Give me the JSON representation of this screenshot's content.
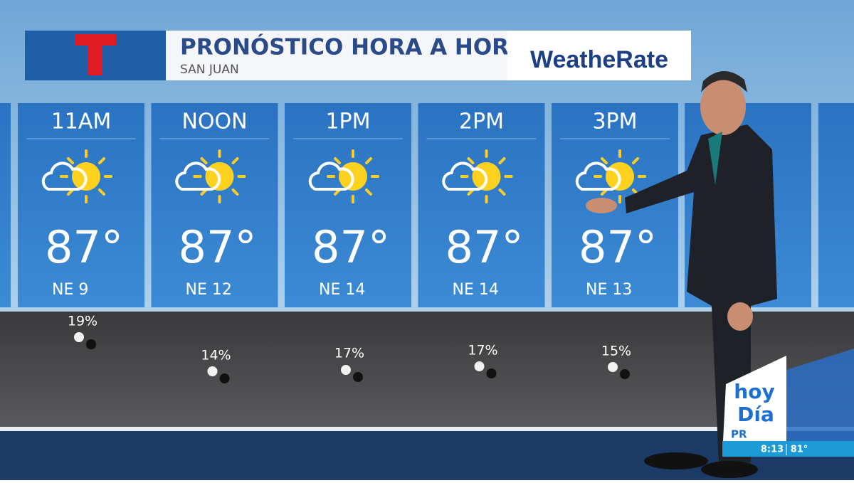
{
  "header": {
    "title": "PRONÓSTICO HORA A HORA",
    "subtitle": "SAN JUAN",
    "brand": "WeatheRate"
  },
  "hours": [
    {
      "time": "11AM",
      "temp": "87°",
      "wind": "NE 9",
      "precip": "19%"
    },
    {
      "time": "NOON",
      "temp": "87°",
      "wind": "NE 12",
      "precip": "14%"
    },
    {
      "time": "1PM",
      "temp": "87°",
      "wind": "NE 14",
      "precip": "17%"
    },
    {
      "time": "2PM",
      "temp": "87°",
      "wind": "NE 14",
      "precip": "17%"
    },
    {
      "time": "3PM",
      "temp": "87°",
      "wind": "NE 13",
      "precip": "15%"
    }
  ],
  "station": {
    "line1": "hoy",
    "line2": "Día",
    "line3": "PR",
    "clock": "8:13",
    "temp": "81°"
  }
}
